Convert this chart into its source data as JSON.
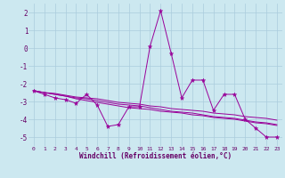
{
  "xlabel": "Windchill (Refroidissement éolien,°C)",
  "x_values": [
    0,
    1,
    2,
    3,
    4,
    5,
    6,
    7,
    8,
    9,
    10,
    11,
    12,
    13,
    14,
    15,
    16,
    17,
    18,
    19,
    20,
    21,
    22,
    23
  ],
  "series1": [
    -2.4,
    -2.6,
    -2.8,
    -2.9,
    -3.1,
    -2.6,
    -3.2,
    -4.4,
    -4.3,
    -3.3,
    -3.3,
    0.1,
    2.1,
    -0.3,
    -2.8,
    -1.8,
    -1.8,
    -3.5,
    -2.6,
    -2.6,
    -4.0,
    -4.5,
    -5.0,
    -5.0
  ],
  "series2": [
    -2.4,
    -2.5,
    -2.55,
    -2.65,
    -2.75,
    -2.8,
    -2.85,
    -2.95,
    -3.05,
    -3.1,
    -3.15,
    -3.25,
    -3.3,
    -3.4,
    -3.45,
    -3.5,
    -3.55,
    -3.65,
    -3.7,
    -3.75,
    -3.85,
    -3.9,
    -3.95,
    -4.05
  ],
  "series3": [
    -2.4,
    -2.5,
    -2.6,
    -2.7,
    -2.8,
    -2.85,
    -2.95,
    -3.05,
    -3.15,
    -3.2,
    -3.25,
    -3.35,
    -3.45,
    -3.55,
    -3.6,
    -3.65,
    -3.75,
    -3.85,
    -3.9,
    -3.95,
    -4.05,
    -4.15,
    -4.2,
    -4.3
  ],
  "series4": [
    -2.4,
    -2.5,
    -2.6,
    -2.7,
    -2.85,
    -2.95,
    -3.05,
    -3.15,
    -3.25,
    -3.35,
    -3.4,
    -3.45,
    -3.55,
    -3.6,
    -3.65,
    -3.75,
    -3.8,
    -3.9,
    -3.95,
    -4.0,
    -4.1,
    -4.2,
    -4.25,
    -4.35
  ],
  "line_color": "#990099",
  "bg_color": "#cce8f0",
  "grid_color": "#aaccdd",
  "text_color": "#660066",
  "ylim": [
    -5.5,
    2.5
  ],
  "yticks": [
    -5,
    -4,
    -3,
    -2,
    -1,
    0,
    1,
    2
  ],
  "marker": "*",
  "marker_size": 3.5,
  "linewidth": 0.7
}
